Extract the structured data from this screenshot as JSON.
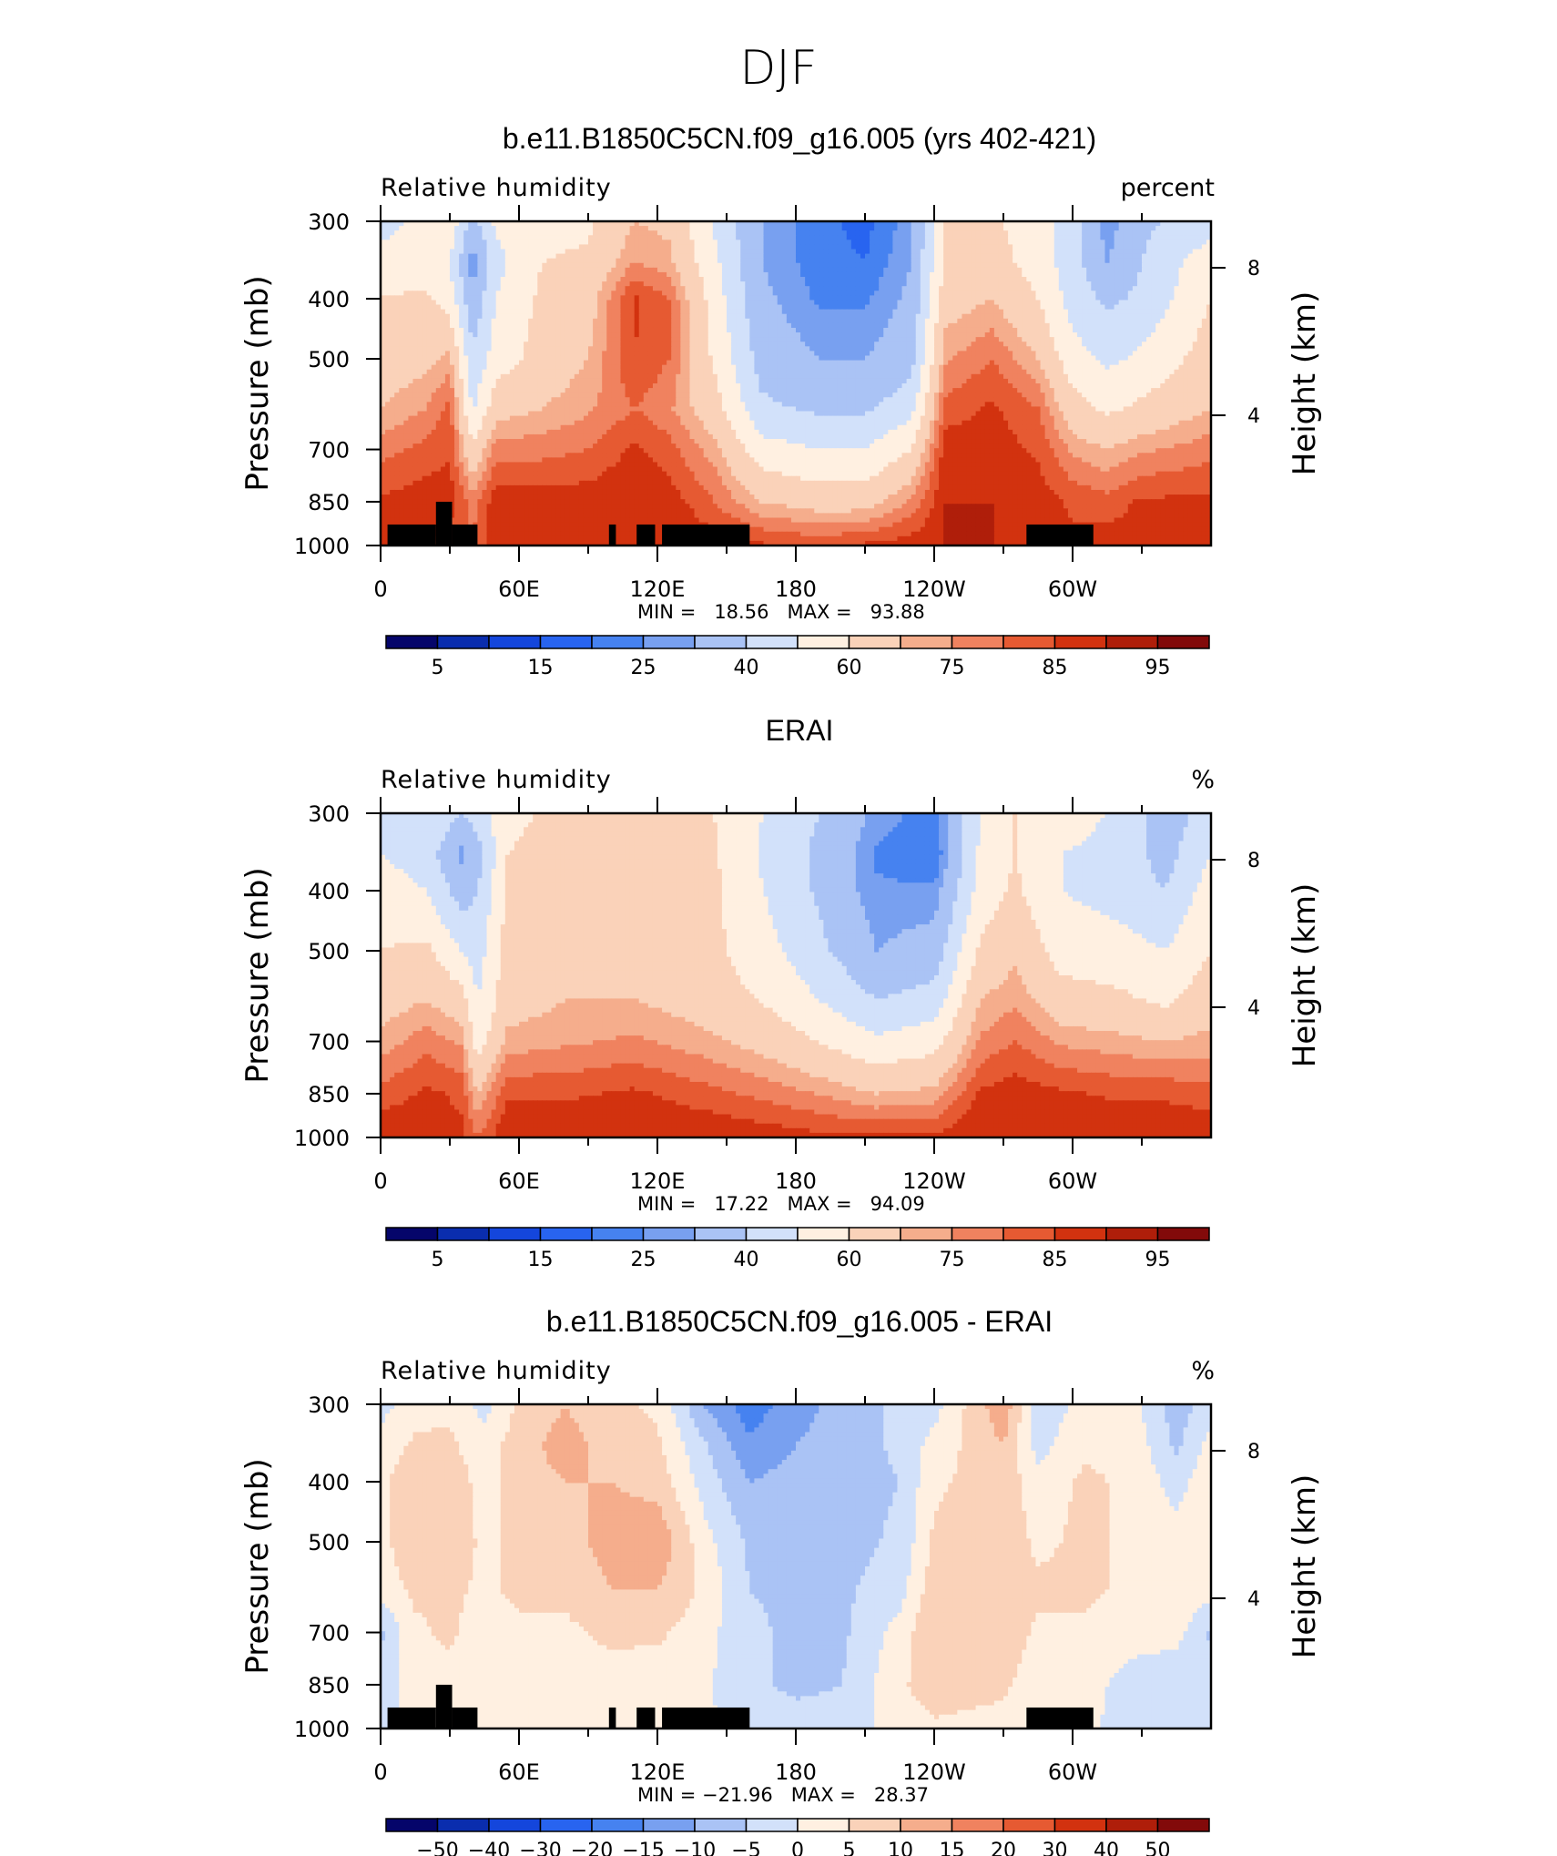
{
  "figure": {
    "title": "DJF"
  },
  "panels": [
    {
      "id": "model",
      "title": "b.e11.B1850C5CN.f09_g16.005 (yrs 402-421)",
      "left_label": "Relative humidity",
      "right_label": "percent",
      "stats_text": "MIN =   18.56   MAX =   93.88",
      "ylabel": "Pressure (mb)",
      "ylabel_right": "Height (km)",
      "colorbar_labels": [
        "5",
        "15",
        "25",
        "40",
        "60",
        "75",
        "85",
        "95"
      ]
    },
    {
      "id": "obs",
      "title": "ERAI",
      "left_label": "Relative humidity",
      "right_label": "%",
      "stats_text": "MIN =   17.22   MAX =   94.09",
      "ylabel": "Pressure (mb)",
      "ylabel_right": "Height (km)",
      "colorbar_labels": [
        "5",
        "15",
        "25",
        "40",
        "60",
        "75",
        "85",
        "95"
      ]
    },
    {
      "id": "diff",
      "title": "b.e11.B1850C5CN.f09_g16.005 - ERAI",
      "left_label": "Relative humidity",
      "right_label": "%",
      "stats_text": "MIN = −21.96   MAX =   28.37",
      "ylabel": "Pressure (mb)",
      "ylabel_right": "Height (km)",
      "colorbar_labels": [
        "−50",
        "−40",
        "−30",
        "−20",
        "−15",
        "−10",
        "−5",
        "0",
        "5",
        "10",
        "15",
        "20",
        "30",
        "40",
        "50"
      ]
    }
  ],
  "chart_data": [
    {
      "type": "heatmap",
      "title": "b.e11.B1850C5CN.f09_g16.005 (yrs 402-421)",
      "ylabel": "Pressure (mb)",
      "ylabel_right": "Height (km)",
      "x_ticks": [
        "0",
        "60E",
        "120E",
        "180",
        "120W",
        "60W"
      ],
      "y_ticks": [
        300,
        400,
        500,
        700,
        850,
        1000
      ],
      "y_right_ticks": [
        8,
        4
      ],
      "xlim": [
        0,
        360
      ],
      "ylim": [
        1000,
        300
      ],
      "stats": {
        "min": 18.56,
        "max": 93.88
      },
      "levels": [
        5,
        10,
        15,
        20,
        25,
        30,
        40,
        50,
        60,
        70,
        75,
        80,
        85,
        90,
        95
      ],
      "colors": [
        "#05056a",
        "#0a2dae",
        "#1446dc",
        "#2864f0",
        "#4682f0",
        "#78a0f0",
        "#aac3f5",
        "#d2e1fa",
        "#fff0e1",
        "#fad2b9",
        "#f5ad8c",
        "#f0825f",
        "#e65a32",
        "#d2320f",
        "#af1e0a",
        "#820a0a"
      ],
      "columns": [
        {
          "lon": 0,
          "v": [
            44,
            57,
            60,
            65,
            70,
            78,
            86,
            88
          ]
        },
        {
          "lon": 20,
          "v": [
            56,
            53,
            62,
            68,
            75,
            82,
            88,
            86
          ]
        },
        {
          "lon": 30,
          "v": [
            58,
            50,
            55,
            72,
            82,
            84,
            88,
            82
          ]
        },
        {
          "lon": 40,
          "v": [
            36,
            25,
            32,
            42,
            48,
            62,
            78,
            80
          ]
        },
        {
          "lon": 50,
          "v": [
            52,
            47,
            50,
            55,
            66,
            78,
            88,
            90
          ]
        },
        {
          "lon": 70,
          "v": [
            56,
            60,
            62,
            64,
            70,
            78,
            88,
            90
          ]
        },
        {
          "lon": 90,
          "v": [
            58,
            62,
            66,
            70,
            74,
            80,
            88,
            90
          ]
        },
        {
          "lon": 110,
          "v": [
            70,
            75,
            86,
            85,
            80,
            86,
            90,
            90
          ]
        },
        {
          "lon": 125,
          "v": [
            68,
            72,
            80,
            80,
            76,
            82,
            88,
            90
          ]
        },
        {
          "lon": 145,
          "v": [
            48,
            52,
            55,
            58,
            64,
            72,
            80,
            88
          ]
        },
        {
          "lon": 165,
          "v": [
            30,
            30,
            32,
            36,
            42,
            54,
            70,
            86
          ]
        },
        {
          "lon": 190,
          "v": [
            22,
            22,
            24,
            30,
            38,
            50,
            66,
            84
          ]
        },
        {
          "lon": 210,
          "v": [
            18,
            20,
            24,
            30,
            38,
            50,
            66,
            86
          ]
        },
        {
          "lon": 230,
          "v": [
            28,
            30,
            32,
            36,
            46,
            60,
            76,
            88
          ]
        },
        {
          "lon": 245,
          "v": [
            60,
            62,
            66,
            74,
            82,
            88,
            90,
            90
          ]
        },
        {
          "lon": 265,
          "v": [
            62,
            64,
            70,
            80,
            86,
            88,
            90,
            90
          ]
        },
        {
          "lon": 285,
          "v": [
            54,
            56,
            60,
            70,
            80,
            84,
            88,
            88
          ]
        },
        {
          "lon": 300,
          "v": [
            46,
            44,
            46,
            54,
            64,
            74,
            84,
            86
          ]
        },
        {
          "lon": 315,
          "v": [
            26,
            30,
            38,
            48,
            58,
            70,
            82,
            88
          ]
        },
        {
          "lon": 330,
          "v": [
            38,
            40,
            42,
            52,
            62,
            74,
            86,
            88
          ]
        },
        {
          "lon": 360,
          "v": [
            44,
            57,
            60,
            65,
            70,
            78,
            86,
            88
          ]
        }
      ],
      "pressures": [
        300,
        350,
        400,
        500,
        600,
        700,
        850,
        1000
      ],
      "topography": [
        {
          "lon0": 3,
          "lon1": 24,
          "p": 925
        },
        {
          "lon0": 24,
          "lon1": 31,
          "p": 850
        },
        {
          "lon0": 31,
          "lon1": 42,
          "p": 925
        },
        {
          "lon0": 99,
          "lon1": 102,
          "p": 925
        },
        {
          "lon0": 111,
          "lon1": 119,
          "p": 925
        },
        {
          "lon0": 122,
          "lon1": 160,
          "p": 925
        },
        {
          "lon0": 280,
          "lon1": 309,
          "p": 925
        }
      ]
    },
    {
      "type": "heatmap",
      "title": "ERAI",
      "ylabel": "Pressure (mb)",
      "ylabel_right": "Height (km)",
      "x_ticks": [
        "0",
        "60E",
        "120E",
        "180",
        "120W",
        "60W"
      ],
      "y_ticks": [
        300,
        400,
        500,
        700,
        850,
        1000
      ],
      "y_right_ticks": [
        8,
        4
      ],
      "xlim": [
        0,
        360
      ],
      "ylim": [
        1000,
        300
      ],
      "stats": {
        "min": 17.22,
        "max": 94.09
      },
      "levels": [
        5,
        10,
        15,
        20,
        25,
        30,
        40,
        50,
        60,
        70,
        75,
        80,
        85,
        90,
        95
      ],
      "colors": [
        "#05056a",
        "#0a2dae",
        "#1446dc",
        "#2864f0",
        "#4682f0",
        "#78a0f0",
        "#aac3f5",
        "#d2e1fa",
        "#fff0e1",
        "#fad2b9",
        "#f5ad8c",
        "#f0825f",
        "#e65a32",
        "#d2320f",
        "#af1e0a",
        "#820a0a"
      ],
      "columns": [
        {
          "lon": 0,
          "v": [
            45,
            50,
            55,
            60,
            66,
            72,
            82,
            90
          ]
        },
        {
          "lon": 20,
          "v": [
            50,
            45,
            50,
            62,
            70,
            78,
            86,
            88
          ]
        },
        {
          "lon": 35,
          "v": [
            40,
            28,
            35,
            50,
            64,
            74,
            84,
            86
          ]
        },
        {
          "lon": 42,
          "v": [
            45,
            35,
            40,
            45,
            50,
            55,
            70,
            80
          ]
        },
        {
          "lon": 55,
          "v": [
            58,
            60,
            62,
            64,
            66,
            72,
            84,
            90
          ]
        },
        {
          "lon": 80,
          "v": [
            62,
            64,
            66,
            68,
            70,
            74,
            84,
            90
          ]
        },
        {
          "lon": 110,
          "v": [
            66,
            68,
            66,
            68,
            70,
            76,
            86,
            90
          ]
        },
        {
          "lon": 140,
          "v": [
            62,
            64,
            64,
            64,
            66,
            72,
            82,
            90
          ]
        },
        {
          "lon": 170,
          "v": [
            48,
            46,
            48,
            52,
            58,
            66,
            78,
            88
          ]
        },
        {
          "lon": 195,
          "v": [
            38,
            36,
            36,
            40,
            48,
            58,
            74,
            86
          ]
        },
        {
          "lon": 215,
          "v": [
            28,
            24,
            26,
            30,
            40,
            52,
            70,
            86
          ]
        },
        {
          "lon": 240,
          "v": [
            22,
            20,
            26,
            34,
            44,
            56,
            72,
            86
          ]
        },
        {
          "lon": 260,
          "v": [
            50,
            52,
            54,
            62,
            70,
            76,
            86,
            90
          ]
        },
        {
          "lon": 275,
          "v": [
            60,
            60,
            62,
            68,
            74,
            80,
            88,
            90
          ]
        },
        {
          "lon": 295,
          "v": [
            56,
            50,
            50,
            56,
            64,
            74,
            86,
            88
          ]
        },
        {
          "lon": 320,
          "v": [
            48,
            46,
            46,
            54,
            62,
            72,
            84,
            90
          ]
        },
        {
          "lon": 340,
          "v": [
            34,
            36,
            40,
            50,
            58,
            70,
            84,
            90
          ]
        },
        {
          "lon": 360,
          "v": [
            45,
            50,
            55,
            60,
            66,
            72,
            82,
            90
          ]
        }
      ],
      "pressures": [
        300,
        350,
        400,
        500,
        600,
        700,
        850,
        1000
      ],
      "topography": []
    },
    {
      "type": "heatmap",
      "title": "b.e11.B1850C5CN.f09_g16.005 - ERAI",
      "ylabel": "Pressure (mb)",
      "ylabel_right": "Height (km)",
      "x_ticks": [
        "0",
        "60E",
        "120E",
        "180",
        "120W",
        "60W"
      ],
      "y_ticks": [
        300,
        400,
        500,
        700,
        850,
        1000
      ],
      "y_right_ticks": [
        8,
        4
      ],
      "xlim": [
        0,
        360
      ],
      "ylim": [
        1000,
        300
      ],
      "stats": {
        "min": -21.96,
        "max": 28.37
      },
      "levels": [
        -50,
        -40,
        -30,
        -20,
        -15,
        -10,
        -5,
        0,
        5,
        10,
        15,
        20,
        30,
        40,
        50
      ],
      "colors": [
        "#05056a",
        "#0a2dae",
        "#1446dc",
        "#2864f0",
        "#4682f0",
        "#78a0f0",
        "#aac3f5",
        "#d2e1fa",
        "#fff0e1",
        "#fad2b9",
        "#f5ad8c",
        "#f0825f",
        "#e65a32",
        "#d2320f",
        "#af1e0a",
        "#820a0a"
      ],
      "columns": [
        {
          "lon": 0,
          "v": [
            -2,
            2,
            4,
            3,
            2,
            -6,
            -3,
            -2
          ]
        },
        {
          "lon": 15,
          "v": [
            3,
            6,
            8,
            10,
            6,
            4,
            3,
            2
          ]
        },
        {
          "lon": 30,
          "v": [
            4,
            6,
            8,
            8,
            6,
            6,
            3,
            1
          ]
        },
        {
          "lon": 45,
          "v": [
            -2,
            2,
            3,
            4,
            4,
            2,
            2,
            3
          ]
        },
        {
          "lon": 60,
          "v": [
            6,
            8,
            8,
            6,
            6,
            4,
            2,
            2
          ]
        },
        {
          "lon": 80,
          "v": [
            10,
            12,
            10,
            8,
            6,
            4,
            3,
            2
          ]
        },
        {
          "lon": 100,
          "v": [
            6,
            8,
            10,
            12,
            10,
            6,
            3,
            2
          ]
        },
        {
          "lon": 120,
          "v": [
            4,
            6,
            8,
            14,
            10,
            6,
            2,
            1
          ]
        },
        {
          "lon": 140,
          "v": [
            -10,
            -4,
            -2,
            2,
            4,
            2,
            1,
            1
          ]
        },
        {
          "lon": 160,
          "v": [
            -18,
            -14,
            -10,
            -6,
            -5,
            -4,
            -4,
            -2
          ]
        },
        {
          "lon": 180,
          "v": [
            -12,
            -10,
            -8,
            -6,
            -6,
            -6,
            -6,
            -3
          ]
        },
        {
          "lon": 200,
          "v": [
            -8,
            -8,
            -7,
            -7,
            -6,
            -6,
            -5,
            -3
          ]
        },
        {
          "lon": 225,
          "v": [
            -4,
            -4,
            -5,
            -4,
            -2,
            2,
            4,
            2
          ]
        },
        {
          "lon": 240,
          "v": [
            -2,
            2,
            4,
            6,
            8,
            10,
            8,
            4
          ]
        },
        {
          "lon": 270,
          "v": [
            14,
            10,
            8,
            8,
            8,
            8,
            6,
            3
          ]
        },
        {
          "lon": 285,
          "v": [
            -4,
            -2,
            2,
            4,
            6,
            4,
            2,
            1
          ]
        },
        {
          "lon": 305,
          "v": [
            2,
            4,
            6,
            6,
            6,
            4,
            2,
            1
          ]
        },
        {
          "lon": 325,
          "v": [
            2,
            4,
            4,
            4,
            4,
            2,
            -2,
            -2
          ]
        },
        {
          "lon": 345,
          "v": [
            -8,
            -6,
            -2,
            2,
            4,
            2,
            -4,
            -2
          ]
        },
        {
          "lon": 360,
          "v": [
            -2,
            2,
            4,
            3,
            2,
            -6,
            -3,
            -2
          ]
        }
      ],
      "pressures": [
        300,
        350,
        400,
        500,
        600,
        700,
        850,
        1000
      ],
      "topography": [
        {
          "lon0": 3,
          "lon1": 24,
          "p": 925
        },
        {
          "lon0": 24,
          "lon1": 31,
          "p": 850
        },
        {
          "lon0": 31,
          "lon1": 42,
          "p": 925
        },
        {
          "lon0": 99,
          "lon1": 102,
          "p": 925
        },
        {
          "lon0": 111,
          "lon1": 119,
          "p": 925
        },
        {
          "lon0": 122,
          "lon1": 160,
          "p": 925
        },
        {
          "lon0": 280,
          "lon1": 309,
          "p": 925
        }
      ]
    }
  ]
}
